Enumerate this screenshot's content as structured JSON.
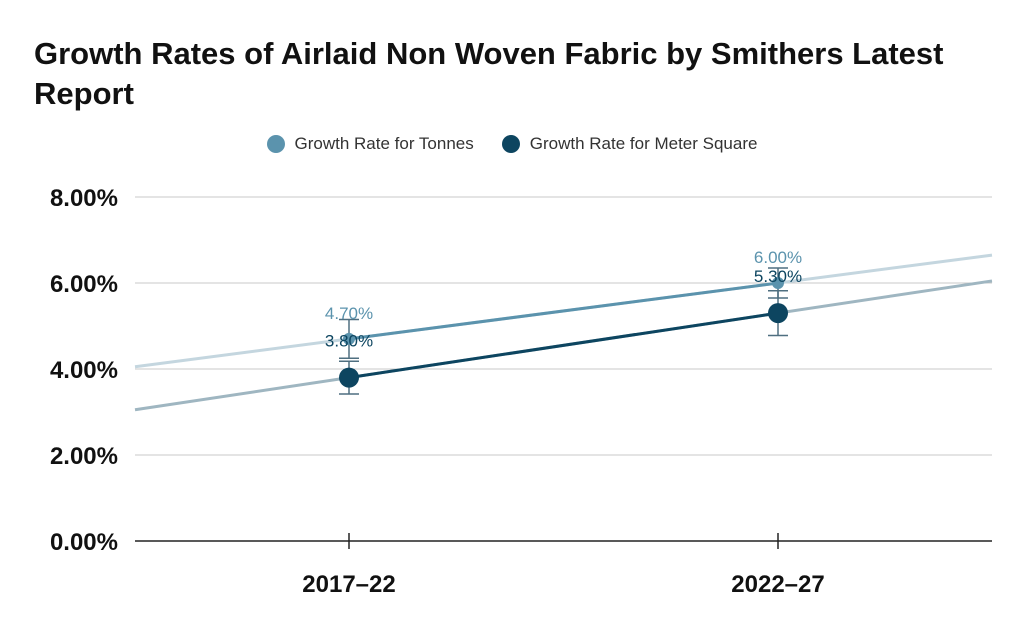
{
  "chart_data": {
    "type": "line",
    "title": "Growth Rates of Airlaid Non Woven Fabric by Smithers Latest Report",
    "categories": [
      "2017–22",
      "2022–27"
    ],
    "ylim": [
      0,
      8
    ],
    "y_ticks": [
      "0.00%",
      "2.00%",
      "4.00%",
      "6.00%",
      "8.00%"
    ],
    "y_tick_values": [
      0,
      2,
      4,
      6,
      8
    ],
    "grid": true,
    "legend_position": "top-center",
    "series": [
      {
        "name": "Growth Rate for Tonnes",
        "values": [
          4.7,
          6.0
        ],
        "labels": [
          "4.70%",
          "6.00%"
        ],
        "error": [
          0.45,
          0.35
        ],
        "color": "#5b93ad",
        "trend_color": "#c4d6df"
      },
      {
        "name": "Growth Rate for Meter Square",
        "values": [
          3.8,
          5.3
        ],
        "labels": [
          "3.80%",
          "5.30%"
        ],
        "error": [
          0.38,
          0.52
        ],
        "color": "#0d4560",
        "trend_color": "#9fb6c1"
      }
    ]
  }
}
